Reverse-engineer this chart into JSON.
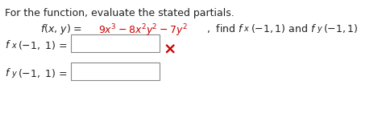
{
  "title": "For the function, evaluate the stated partials.",
  "red_color": "#cc0000",
  "black_color": "#222222",
  "bg_color": "#ffffff",
  "font_size": 9.0,
  "sub_font_size": 7.0,
  "red_x": "×"
}
